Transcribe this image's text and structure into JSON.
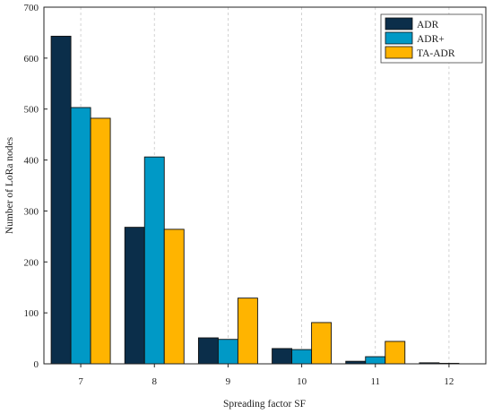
{
  "chart_data": {
    "type": "bar",
    "xlabel": "Spreading factor SF",
    "ylabel": "Number of LoRa nodes",
    "categories": [
      "7",
      "8",
      "9",
      "10",
      "11",
      "12"
    ],
    "ylim": [
      0,
      700
    ],
    "yticks": [
      0,
      100,
      200,
      300,
      400,
      500,
      600,
      700
    ],
    "grid": true,
    "legend_position": "top-right",
    "series": [
      {
        "name": "ADR",
        "color": "#0b2e4a",
        "values": [
          643,
          268,
          51,
          30,
          5,
          2
        ]
      },
      {
        "name": "ADR+",
        "color": "#0099c6",
        "values": [
          503,
          406,
          48,
          28,
          14,
          1
        ]
      },
      {
        "name": "TA-ADR",
        "color": "#ffb400",
        "values": [
          482,
          264,
          129,
          81,
          44,
          0
        ]
      }
    ]
  }
}
